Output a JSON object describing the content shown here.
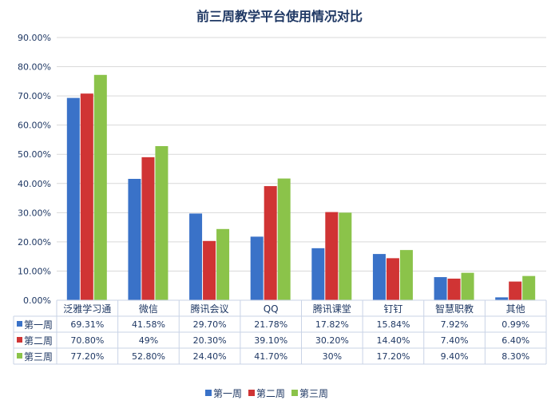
{
  "chart_data": {
    "type": "bar",
    "title": "前三周教学平台使用情况对比",
    "categories": [
      "泛雅学习通",
      "微信",
      "腾讯会议",
      "QQ",
      "腾讯课堂",
      "钉钉",
      "智慧职教",
      "其他"
    ],
    "series": [
      {
        "name": "第一周",
        "color": "#3a72c8",
        "values": [
          69.31,
          41.58,
          29.7,
          21.78,
          17.82,
          15.84,
          7.92,
          0.99
        ],
        "labels": [
          "69.31%",
          "41.58%",
          "29.70%",
          "21.78%",
          "17.82%",
          "15.84%",
          "7.92%",
          "0.99%"
        ]
      },
      {
        "name": "第二周",
        "color": "#d03434",
        "values": [
          70.8,
          49,
          20.3,
          39.1,
          30.2,
          14.4,
          7.4,
          6.4
        ],
        "labels": [
          "70.80%",
          "49%",
          "20.30%",
          "39.10%",
          "30.20%",
          "14.40%",
          "7.40%",
          "6.40%"
        ]
      },
      {
        "name": "第三周",
        "color": "#8bc34a",
        "values": [
          77.2,
          52.8,
          24.4,
          41.7,
          30,
          17.2,
          9.4,
          8.3
        ],
        "labels": [
          "77.20%",
          "52.80%",
          "24.40%",
          "41.70%",
          "30%",
          "17.20%",
          "9.40%",
          "8.30%"
        ]
      }
    ],
    "ylim": [
      0,
      90
    ],
    "yticks": [
      "0.00%",
      "10.00%",
      "20.00%",
      "30.00%",
      "40.00%",
      "50.00%",
      "60.00%",
      "70.00%",
      "80.00%",
      "90.00%"
    ],
    "grid": true,
    "legend": "bottom-center",
    "data_table": true
  }
}
